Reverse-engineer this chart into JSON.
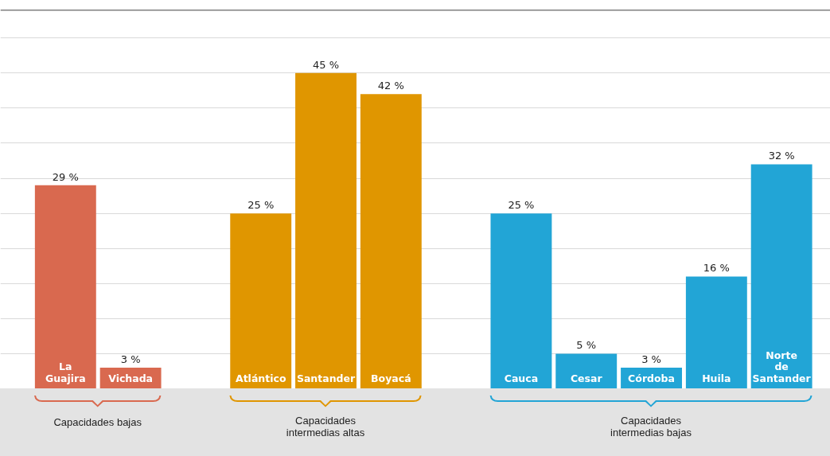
{
  "chart_data": {
    "type": "bar",
    "categories": [
      "La Guajira",
      "Vichada",
      null,
      "Atlántico",
      "Santander",
      "Boyacá",
      null,
      "Cauca",
      "Cesar",
      "Córdoba",
      "Huila",
      "Norte de Santander"
    ],
    "values": [
      29,
      3,
      null,
      25,
      45,
      42,
      null,
      25,
      5,
      3,
      16,
      32
    ],
    "value_labels": [
      "29 %",
      "3 %",
      null,
      "25 %",
      "45 %",
      "42 %",
      null,
      "25 %",
      "5 %",
      "3 %",
      "16 %",
      "32 %"
    ],
    "colors": [
      "#d9694f",
      "#d9694f",
      null,
      "#e09600",
      "#e09600",
      "#e09600",
      null,
      "#22a5d6",
      "#22a5d6",
      "#22a5d6",
      "#22a5d6",
      "#22a5d6"
    ],
    "annotations": [
      "Capacidades bajas",
      "Capacidades intermedias altas",
      "Capacidades intermedias bajas"
    ],
    "ylim": [
      0,
      54
    ],
    "yticks": [
      {
        "value": 5,
        "label": null
      },
      {
        "value": 10,
        "label": null
      },
      {
        "value": 15,
        "label": null
      },
      {
        "value": 20,
        "label": null
      },
      {
        "value": 25,
        "label": null
      },
      {
        "value": 30,
        "label": null
      },
      {
        "value": 35,
        "label": null
      },
      {
        "value": 40,
        "label": null
      },
      {
        "value": 45,
        "label": null
      },
      {
        "value": 50,
        "label": null
      }
    ],
    "grid": "y"
  }
}
